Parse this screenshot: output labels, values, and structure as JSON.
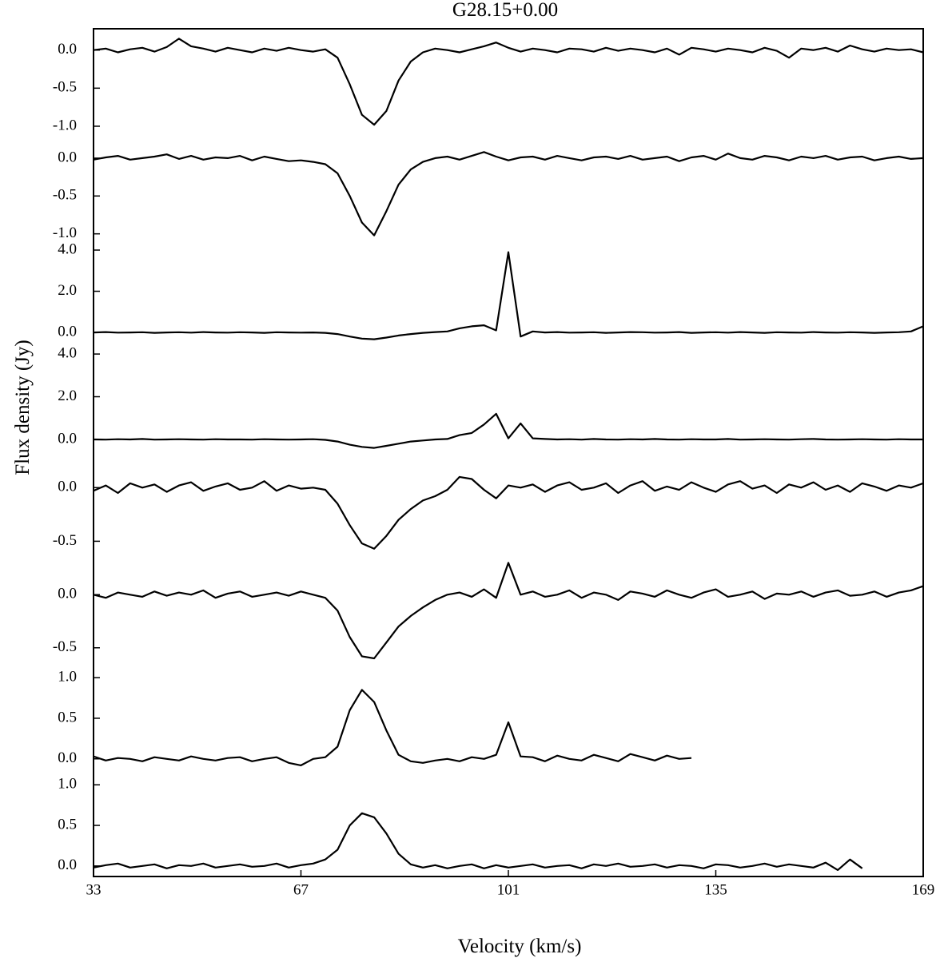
{
  "chart_data": {
    "type": "line",
    "title": "G28.15+0.00",
    "xlabel": "Velocity (km/s)",
    "ylabel": "Flux density (Jy)",
    "color": "#000000",
    "xlim": [
      33,
      169
    ],
    "xticks": [
      33,
      67,
      101,
      135,
      169
    ],
    "x": [
      33,
      35,
      37,
      39,
      41,
      43,
      45,
      47,
      49,
      51,
      53,
      55,
      57,
      59,
      61,
      63,
      65,
      67,
      69,
      71,
      73,
      75,
      77,
      79,
      81,
      83,
      85,
      87,
      89,
      91,
      93,
      95,
      97,
      99,
      101,
      103,
      105,
      107,
      109,
      111,
      113,
      115,
      117,
      119,
      121,
      123,
      125,
      127,
      129,
      131,
      133,
      135,
      137,
      139,
      141,
      143,
      145,
      147,
      149,
      151,
      153,
      155,
      157,
      159,
      161,
      163,
      165,
      167,
      169
    ],
    "panels": [
      {
        "ylim": [
          -1.21,
          0.28
        ],
        "yticks": [
          {
            "value": 0,
            "label": "0.0"
          },
          {
            "value": -0.5,
            "label": "-0.5"
          },
          {
            "value": -1,
            "label": "-1.0"
          }
        ],
        "values": [
          0,
          0.02,
          -0.03,
          0.01,
          0.03,
          -0.02,
          0.04,
          0.15,
          0.05,
          0.02,
          -0.02,
          0.03,
          0,
          -0.03,
          0.02,
          -0.01,
          0.03,
          0,
          -0.02,
          0.01,
          -0.1,
          -0.45,
          -0.85,
          -0.98,
          -0.8,
          -0.4,
          -0.15,
          -0.03,
          0.02,
          0,
          -0.03,
          0.01,
          0.05,
          0.1,
          0.03,
          -0.02,
          0.02,
          0,
          -0.03,
          0.02,
          0.01,
          -0.02,
          0.03,
          -0.01,
          0.02,
          0,
          -0.03,
          0.02,
          -0.06,
          0.03,
          0.01,
          -0.02,
          0.02,
          0,
          -0.03,
          0.03,
          -0.01,
          -0.1,
          0.02,
          0,
          0.03,
          -0.02,
          0.06,
          0.01,
          -0.02,
          0.02,
          0,
          0.01,
          -0.03
        ]
      },
      {
        "ylim": [
          -1.13,
          0.21
        ],
        "yticks": [
          {
            "value": 0,
            "label": "0.0"
          },
          {
            "value": -0.5,
            "label": "-0.5"
          },
          {
            "value": -1,
            "label": "-1.0"
          }
        ],
        "values": [
          -0.02,
          0.01,
          0.03,
          -0.02,
          0,
          0.02,
          0.05,
          -0.01,
          0.03,
          -0.02,
          0.01,
          0,
          0.03,
          -0.03,
          0.02,
          -0.01,
          -0.04,
          -0.03,
          -0.05,
          -0.08,
          -0.2,
          -0.5,
          -0.85,
          -1.02,
          -0.7,
          -0.35,
          -0.15,
          -0.05,
          0,
          0.02,
          -0.02,
          0.03,
          0.08,
          0.02,
          -0.03,
          0.01,
          0.02,
          -0.02,
          0.03,
          0,
          -0.03,
          0.01,
          0.02,
          -0.01,
          0.03,
          -0.02,
          0,
          0.02,
          -0.04,
          0.01,
          0.03,
          -0.02,
          0.06,
          0,
          -0.02,
          0.03,
          0.01,
          -0.03,
          0.02,
          0,
          0.03,
          -0.02,
          0.01,
          0.02,
          -0.03,
          0,
          0.02,
          -0.01,
          0
        ]
      },
      {
        "ylim": [
          -0.54,
          4.31
        ],
        "yticks": [
          {
            "value": 4,
            "label": "4.0"
          },
          {
            "value": 2,
            "label": "2.0"
          },
          {
            "value": 0,
            "label": "0.0"
          }
        ],
        "values": [
          0,
          0.02,
          -0.01,
          0,
          0.01,
          -0.02,
          0,
          0.01,
          -0.01,
          0.02,
          0,
          -0.01,
          0.01,
          0,
          -0.02,
          0.01,
          0,
          -0.01,
          0,
          -0.02,
          -0.08,
          -0.2,
          -0.3,
          -0.33,
          -0.25,
          -0.15,
          -0.08,
          -0.02,
          0.02,
          0.05,
          0.2,
          0.3,
          0.35,
          0.1,
          3.9,
          -0.2,
          0.05,
          0,
          0.02,
          -0.01,
          0,
          0.01,
          -0.02,
          0,
          0.02,
          0.01,
          -0.01,
          0,
          0.02,
          -0.02,
          0,
          0.01,
          -0.01,
          0.02,
          0,
          -0.02,
          0.01,
          0,
          -0.01,
          0.02,
          0,
          -0.01,
          0.01,
          0,
          -0.02,
          0,
          0.01,
          0.05,
          0.3
        ]
      },
      {
        "ylim": [
          -0.75,
          4.49
        ],
        "yticks": [
          {
            "value": 4,
            "label": "4.0"
          },
          {
            "value": 2,
            "label": "2.0"
          },
          {
            "value": 0,
            "label": "0.0"
          }
        ],
        "values": [
          0,
          -0.01,
          0.01,
          0,
          0.02,
          -0.01,
          0,
          0.01,
          0,
          -0.01,
          0.01,
          0,
          0,
          -0.01,
          0.01,
          0,
          -0.01,
          0,
          0.01,
          -0.02,
          -0.1,
          -0.25,
          -0.35,
          -0.4,
          -0.3,
          -0.2,
          -0.1,
          -0.05,
          0,
          0.02,
          0.2,
          0.3,
          0.7,
          1.2,
          0.05,
          0.75,
          0.05,
          0.02,
          0,
          0.01,
          -0.01,
          0.02,
          0,
          -0.01,
          0.01,
          0,
          0.02,
          0,
          -0.01,
          0.01,
          0,
          0,
          0.02,
          -0.01,
          0,
          0.01,
          0,
          -0.01,
          0.01,
          0.02,
          0,
          -0.01,
          0,
          0.01,
          0,
          -0.01,
          0.01,
          0,
          0
        ]
      },
      {
        "ylim": [
          -0.78,
          0.3
        ],
        "yticks": [
          {
            "value": 0,
            "label": "0.0"
          },
          {
            "value": -0.5,
            "label": "-0.5"
          }
        ],
        "values": [
          -0.03,
          0.02,
          -0.05,
          0.04,
          0,
          0.03,
          -0.04,
          0.02,
          0.05,
          -0.03,
          0.01,
          0.04,
          -0.02,
          0,
          0.06,
          -0.03,
          0.02,
          -0.01,
          0,
          -0.02,
          -0.15,
          -0.35,
          -0.52,
          -0.57,
          -0.45,
          -0.3,
          -0.2,
          -0.12,
          -0.08,
          -0.02,
          0.1,
          0.08,
          -0.02,
          -0.1,
          0.02,
          0,
          0.03,
          -0.04,
          0.02,
          0.05,
          -0.02,
          0,
          0.04,
          -0.05,
          0.02,
          0.06,
          -0.03,
          0.01,
          -0.02,
          0.05,
          0,
          -0.04,
          0.03,
          0.06,
          -0.01,
          0.02,
          -0.05,
          0.03,
          0,
          0.05,
          -0.02,
          0.02,
          -0.04,
          0.04,
          0.01,
          -0.03,
          0.02,
          0,
          0.04
        ]
      },
      {
        "ylim": [
          -0.72,
          0.22
        ],
        "yticks": [
          {
            "value": 0,
            "label": "0.0"
          },
          {
            "value": -0.5,
            "label": "-0.5"
          }
        ],
        "values": [
          0,
          -0.03,
          0.02,
          0,
          -0.02,
          0.03,
          -0.01,
          0.02,
          0,
          0.04,
          -0.03,
          0.01,
          0.03,
          -0.02,
          0,
          0.02,
          -0.01,
          0.03,
          0,
          -0.03,
          -0.15,
          -0.4,
          -0.58,
          -0.6,
          -0.45,
          -0.3,
          -0.2,
          -0.12,
          -0.05,
          0,
          0.02,
          -0.02,
          0.05,
          -0.03,
          0.3,
          0,
          0.03,
          -0.02,
          0,
          0.04,
          -0.03,
          0.02,
          0,
          -0.05,
          0.03,
          0.01,
          -0.02,
          0.04,
          0,
          -0.03,
          0.02,
          0.05,
          -0.02,
          0,
          0.03,
          -0.04,
          0.01,
          0,
          0.03,
          -0.02,
          0.02,
          0.04,
          -0.01,
          0,
          0.03,
          -0.02,
          0.02,
          0.04,
          0.08
        ]
      },
      {
        "ylim": [
          -0.15,
          1.08
        ],
        "yticks": [
          {
            "value": 1,
            "label": "1.0"
          },
          {
            "value": 0.5,
            "label": "0.5"
          },
          {
            "value": 0,
            "label": "0.0"
          }
        ],
        "values": [
          0.03,
          -0.02,
          0.01,
          0,
          -0.03,
          0.02,
          0,
          -0.02,
          0.03,
          0,
          -0.02,
          0.01,
          0.02,
          -0.03,
          0,
          0.02,
          -0.05,
          -0.08,
          0,
          0.02,
          0.15,
          0.6,
          0.85,
          0.7,
          0.35,
          0.05,
          -0.03,
          -0.05,
          -0.02,
          0,
          -0.03,
          0.02,
          0,
          0.05,
          0.45,
          0.03,
          0.02,
          -0.03,
          0.04,
          0,
          -0.02,
          0.05,
          0.01,
          -0.03,
          0.06,
          0.02,
          -0.02,
          0.04,
          0,
          0.01,
          null,
          null,
          null,
          null,
          null,
          null,
          null,
          null,
          null,
          null,
          null,
          null,
          null,
          null,
          null,
          null,
          null,
          null,
          null
        ]
      },
      {
        "ylim": [
          -0.13,
          1.17
        ],
        "yticks": [
          {
            "value": 1,
            "label": "1.0"
          },
          {
            "value": 0.5,
            "label": "0.5"
          },
          {
            "value": 0,
            "label": "0.0"
          }
        ],
        "values": [
          -0.02,
          0.01,
          0.03,
          -0.02,
          0,
          0.02,
          -0.03,
          0.01,
          0,
          0.03,
          -0.02,
          0,
          0.02,
          -0.01,
          0,
          0.03,
          -0.02,
          0.01,
          0.03,
          0.08,
          0.2,
          0.5,
          0.65,
          0.6,
          0.4,
          0.15,
          0.02,
          -0.02,
          0.01,
          -0.03,
          0,
          0.02,
          -0.03,
          0.01,
          -0.02,
          0,
          0.02,
          -0.02,
          0,
          0.01,
          -0.03,
          0.02,
          0,
          0.03,
          -0.01,
          0,
          0.02,
          -0.02,
          0.01,
          0,
          -0.03,
          0.02,
          0.01,
          -0.02,
          0,
          0.03,
          -0.01,
          0.02,
          0,
          -0.02,
          0.04,
          -0.05,
          0.08,
          -0.03,
          null,
          null,
          null,
          null,
          null
        ]
      }
    ]
  }
}
